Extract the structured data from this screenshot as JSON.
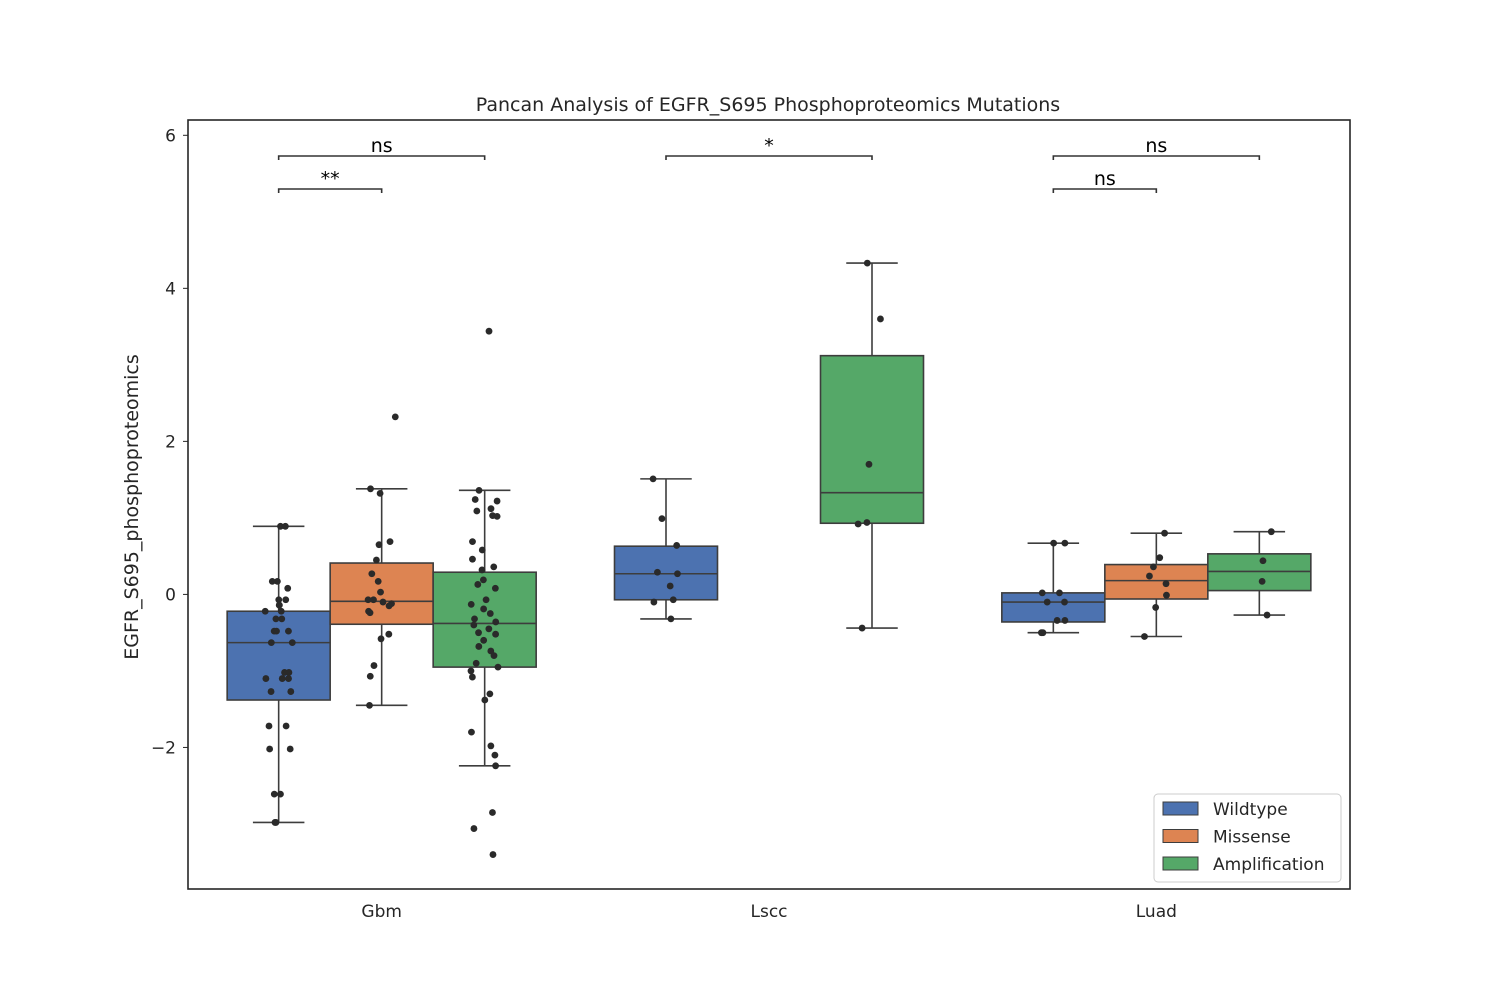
{
  "chart_data": {
    "type": "box",
    "title": "Pancan Analysis of EGFR_S695 Phosphoproteomics Mutations",
    "xlabel": "",
    "ylabel": "EGFR_S695_phosphoproteomics",
    "ylim": [
      -3.85,
      6.2
    ],
    "yticks": [
      -2,
      0,
      2,
      4,
      6
    ],
    "ytick_labels": [
      "−2",
      "0",
      "2",
      "4",
      "6"
    ],
    "categories": [
      "Gbm",
      "Lscc",
      "Luad"
    ],
    "legend": {
      "position": "lower-right",
      "entries": [
        "Wildtype",
        "Missense",
        "Amplification"
      ]
    },
    "series": [
      {
        "name": "Wildtype",
        "color": "#4c72b0",
        "boxes": [
          {
            "category": "Gbm",
            "whisker_low": -2.98,
            "q1": -1.38,
            "median": -0.63,
            "q3": -0.22,
            "whisker_high": 0.89,
            "points": [
              0.89,
              0.89,
              0.17,
              0.17,
              0.08,
              -0.07,
              -0.07,
              -0.14,
              -0.14,
              -0.22,
              -0.22,
              -0.32,
              -0.32,
              -0.48,
              -0.48,
              -0.48,
              -0.63,
              -0.63,
              -1.02,
              -1.02,
              -1.1,
              -1.1,
              -1.1,
              -1.27,
              -1.27,
              -1.72,
              -1.72,
              -2.02,
              -2.02,
              -2.61,
              -2.61,
              -2.98,
              -2.98
            ]
          },
          {
            "category": "Lscc",
            "whisker_low": -0.32,
            "q1": -0.07,
            "median": 0.27,
            "q3": 0.63,
            "whisker_high": 1.51,
            "points": [
              1.51,
              0.99,
              0.64,
              0.29,
              0.27,
              0.11,
              -0.07,
              -0.1,
              -0.32
            ]
          },
          {
            "category": "Luad",
            "whisker_low": -0.5,
            "q1": -0.36,
            "median": -0.1,
            "q3": 0.02,
            "whisker_high": 0.67,
            "points": [
              0.67,
              0.67,
              0.02,
              0.02,
              -0.1,
              -0.1,
              -0.34,
              -0.34,
              -0.5,
              -0.5
            ]
          }
        ]
      },
      {
        "name": "Missense",
        "color": "#dd8452",
        "boxes": [
          {
            "category": "Gbm",
            "whisker_low": -1.45,
            "q1": -0.39,
            "median": -0.09,
            "q3": 0.41,
            "whisker_high": 1.38,
            "points": [
              2.32,
              1.38,
              1.32,
              0.69,
              0.65,
              0.45,
              0.27,
              0.17,
              0.03,
              -0.07,
              -0.07,
              -0.1,
              -0.12,
              -0.15,
              -0.22,
              -0.24,
              -0.52,
              -0.58,
              -0.93,
              -1.07,
              -1.45
            ]
          },
          {
            "category": "Luad",
            "whisker_low": -0.55,
            "q1": -0.06,
            "median": 0.18,
            "q3": 0.39,
            "whisker_high": 0.8,
            "points": [
              0.8,
              0.48,
              0.36,
              0.24,
              0.14,
              -0.01,
              -0.17,
              -0.55
            ]
          }
        ]
      },
      {
        "name": "Amplification",
        "color": "#55a868",
        "boxes": [
          {
            "category": "Gbm",
            "whisker_low": -2.24,
            "q1": -0.95,
            "median": -0.38,
            "q3": 0.29,
            "whisker_high": 1.36,
            "points": [
              3.44,
              1.36,
              1.24,
              1.22,
              1.12,
              1.09,
              1.03,
              1.02,
              0.69,
              0.58,
              0.46,
              0.36,
              0.32,
              0.19,
              0.13,
              0.08,
              -0.07,
              -0.13,
              -0.19,
              -0.25,
              -0.32,
              -0.36,
              -0.4,
              -0.45,
              -0.5,
              -0.52,
              -0.6,
              -0.68,
              -0.74,
              -0.8,
              -0.9,
              -0.95,
              -1.0,
              -1.08,
              -1.3,
              -1.38,
              -1.8,
              -1.98,
              -2.1,
              -2.24,
              -2.85,
              -3.06,
              -3.4
            ]
          },
          {
            "category": "Lscc",
            "whisker_low": -0.44,
            "q1": 0.93,
            "median": 1.33,
            "q3": 3.12,
            "whisker_high": 4.33,
            "points": [
              4.33,
              3.6,
              1.7,
              0.94,
              0.92,
              -0.44
            ]
          },
          {
            "category": "Luad",
            "whisker_low": -0.27,
            "q1": 0.05,
            "median": 0.3,
            "q3": 0.53,
            "whisker_high": 0.82,
            "points": [
              0.82,
              0.44,
              0.17,
              -0.27
            ]
          }
        ]
      }
    ],
    "annotations": [
      {
        "category": "Gbm",
        "from": "Wildtype",
        "to": "Amplification",
        "text": "ns",
        "level": 1
      },
      {
        "category": "Gbm",
        "from": "Wildtype",
        "to": "Missense",
        "text": "**",
        "level": 0
      },
      {
        "category": "Lscc",
        "from": "Wildtype",
        "to": "Amplification",
        "text": "*",
        "level": 1
      },
      {
        "category": "Luad",
        "from": "Wildtype",
        "to": "Amplification",
        "text": "ns",
        "level": 1
      },
      {
        "category": "Luad",
        "from": "Wildtype",
        "to": "Missense",
        "text": "ns",
        "level": 0
      }
    ]
  }
}
